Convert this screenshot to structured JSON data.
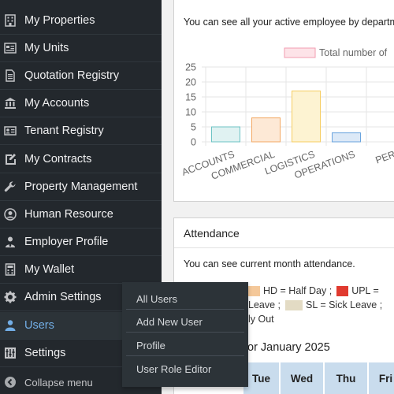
{
  "sidebar": {
    "items": [
      {
        "label": "My Properties",
        "icon": "building-icon"
      },
      {
        "label": "My Units",
        "icon": "units-icon"
      },
      {
        "label": "Quotation Registry",
        "icon": "document-icon"
      },
      {
        "label": "My Accounts",
        "icon": "bank-icon"
      },
      {
        "label": "Tenant Registry",
        "icon": "id-card-icon"
      },
      {
        "label": "My Contracts",
        "icon": "edit-icon"
      },
      {
        "label": "Property Management",
        "icon": "wrench-icon"
      },
      {
        "label": "Human Resource",
        "icon": "user-circle-icon"
      },
      {
        "label": "Employer Profile",
        "icon": "user-tie-icon"
      },
      {
        "label": "My Wallet",
        "icon": "calculator-icon"
      },
      {
        "label": "Admin Settings",
        "icon": "gear-icon"
      },
      {
        "label": "Users",
        "icon": "user-icon",
        "active": true
      },
      {
        "label": "Settings",
        "icon": "sliders-icon"
      }
    ],
    "collapse_label": "Collapse menu"
  },
  "users_flyout": {
    "items": [
      "All Users",
      "Add New User",
      "Profile",
      "User Role Editor"
    ]
  },
  "employee_panel": {
    "description": "You can see all your active employee by department",
    "legend_label": "Total number of"
  },
  "chart_data": {
    "type": "bar",
    "categories": [
      "ACCOUNTS",
      "COMMERCIAL",
      "LOGISTICS",
      "OPERATIONS",
      "PER"
    ],
    "series": [
      {
        "name": "Total number of",
        "values": [
          5,
          8,
          17,
          3,
          0
        ]
      }
    ],
    "ylim": [
      0,
      25
    ],
    "yticks": [
      0,
      5,
      10,
      15,
      20,
      25
    ],
    "bar_fills": [
      "#e0f2f2",
      "#fde9d6",
      "#fdf3d2",
      "#dce9f7",
      "#eeeeee"
    ],
    "bar_strokes": [
      "#6cc3c4",
      "#f3a964",
      "#f6cd61",
      "#6aa4de",
      "#cccccc"
    ],
    "grid": true,
    "legend_position": "top"
  },
  "attendance_panel": {
    "title": "Attendance",
    "description": "You can see current month attendance.",
    "legend_line1": [
      {
        "text": "HD = Half Day ;",
        "color": "#f4c89a"
      },
      {
        "text": "UPL =",
        "color": "#e03a2f"
      }
    ],
    "legend_line2": [
      {
        "text": "Leave ;",
        "color": null
      },
      {
        "text": "SL = Sick Leave ;",
        "color": "#e3dbc4"
      }
    ],
    "legend_line3": "ly Out",
    "month_heading": "or January 2025",
    "calendar_headers": [
      "Tue",
      "Wed",
      "Thu",
      "Fri"
    ]
  }
}
